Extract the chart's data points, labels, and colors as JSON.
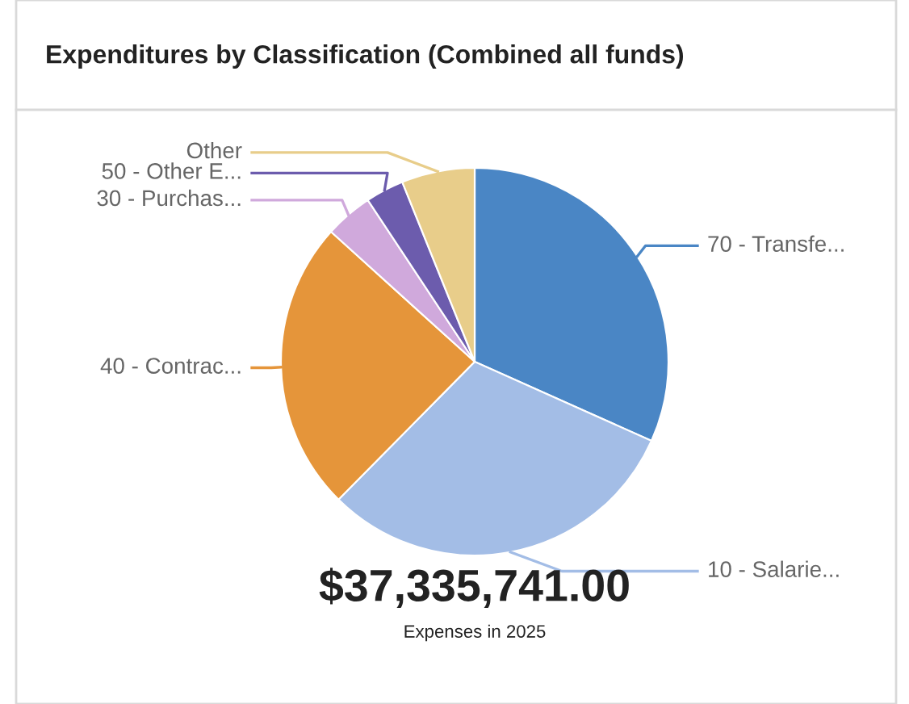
{
  "chart_data": {
    "type": "pie",
    "title": "Expenditures by Classification (Combined all funds)",
    "categories": [
      "70 - Transfe...",
      "10 - Salarie...",
      "40 - Contrac...",
      "30 - Purchas...",
      "50 - Other E...",
      "Other"
    ],
    "values": [
      31.7,
      30.7,
      24.3,
      4.0,
      3.2,
      6.1
    ],
    "colors": [
      "#4a86c5",
      "#a3bde6",
      "#e5953a",
      "#d0a9dc",
      "#6c5cad",
      "#e8cd8a"
    ],
    "annotations": [
      "$37,335,741.00",
      "Expenses in 2025"
    ]
  }
}
